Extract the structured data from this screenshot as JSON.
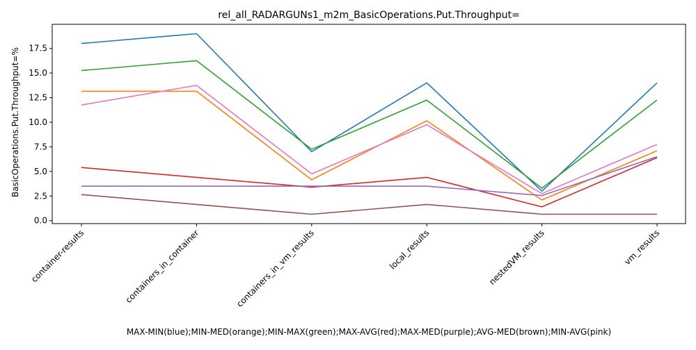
{
  "chart_data": {
    "type": "line",
    "title": "rel_all_RADARGUNs1_m2m_BasicOperations.Put.Throughput=",
    "xlabel": "MAX-MIN(blue);MIN-MED(orange);MIN-MAX(green);MAX-AVG(red);MAX-MED(purple);AVG-MED(brown);MIN-AVG(pink)",
    "ylabel": "BasicOperations.Put.Throughput=%",
    "categories": [
      "container-results",
      "containers_in_container",
      "containers_in_vm_results",
      "local_results",
      "nestedVM_results",
      "vm_results"
    ],
    "yticks": [
      "0.0",
      "2.5",
      "5.0",
      "7.5",
      "10.0",
      "12.5",
      "15.0",
      "17.5"
    ],
    "ylim": [
      -0.3,
      19.95
    ],
    "grid": false,
    "series": [
      {
        "color": "#1f77b4",
        "values": [
          18.0,
          19.0,
          7.0,
          14.0,
          3.0,
          14.0
        ]
      },
      {
        "color": "#ff7f0e",
        "values": [
          13.15,
          13.15,
          4.15,
          10.15,
          2.1,
          7.1
        ]
      },
      {
        "color": "#2ca02c",
        "values": [
          15.25,
          16.25,
          7.25,
          12.25,
          3.3,
          12.25
        ]
      },
      {
        "color": "#d62728",
        "values": [
          5.4,
          4.4,
          3.4,
          4.4,
          1.4,
          6.4
        ]
      },
      {
        "color": "#9467bd",
        "values": [
          3.5,
          3.5,
          3.5,
          3.5,
          2.55,
          6.5
        ]
      },
      {
        "color": "#8c564b",
        "values": [
          2.65,
          1.65,
          0.65,
          1.65,
          0.65,
          0.65
        ]
      },
      {
        "color": "#e377c2",
        "values": [
          11.75,
          13.75,
          4.75,
          9.75,
          2.75,
          7.75
        ]
      }
    ]
  }
}
